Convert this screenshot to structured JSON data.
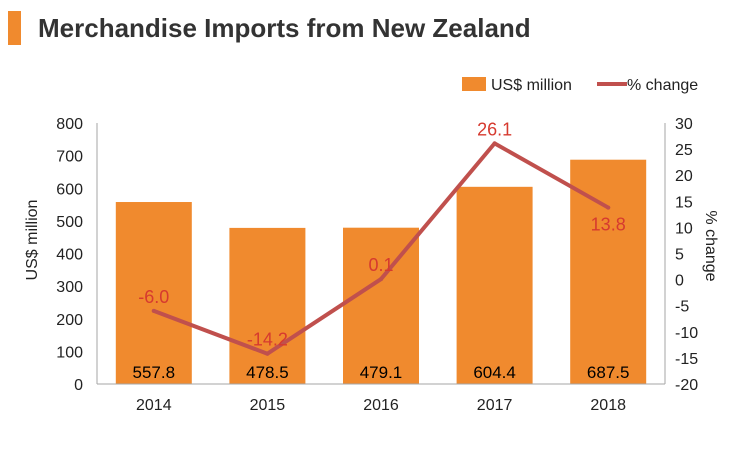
{
  "title": "Merchandise Imports from New Zealand",
  "colors": {
    "accent": "#f08a2e",
    "bar": "#f08a2e",
    "line": "#c0504d",
    "line_label": "#d63a2f",
    "axis": "#a6a6a6",
    "text": "#222222"
  },
  "chart_data": {
    "type": "bar",
    "title": "Merchandise Imports from New Zealand",
    "categories": [
      "2014",
      "2015",
      "2016",
      "2017",
      "2018"
    ],
    "series": [
      {
        "name": "US$ million",
        "kind": "bar",
        "axis": "left",
        "values": [
          557.8,
          478.5,
          479.1,
          604.4,
          687.5
        ],
        "labels": [
          "557.8",
          "478.5",
          "479.1",
          "604.4",
          "687.5"
        ]
      },
      {
        "name": "% change",
        "kind": "line",
        "axis": "right",
        "values": [
          -6.0,
          -14.2,
          0.1,
          26.1,
          13.8
        ],
        "labels": [
          "-6.0",
          "-14.2",
          "0.1",
          "26.1",
          "13.8"
        ]
      }
    ],
    "ylabel": "US$ million",
    "ylim": [
      0,
      800
    ],
    "yticks": [
      "0",
      "100",
      "200",
      "300",
      "400",
      "500",
      "600",
      "700",
      "800"
    ],
    "y2label": "% change",
    "y2lim": [
      -20,
      30
    ],
    "y2ticks": [
      "-20",
      "-15",
      "-10",
      "-5",
      "0",
      "5",
      "10",
      "15",
      "20",
      "25",
      "30"
    ],
    "legend_position": "top-right",
    "grid": false
  }
}
